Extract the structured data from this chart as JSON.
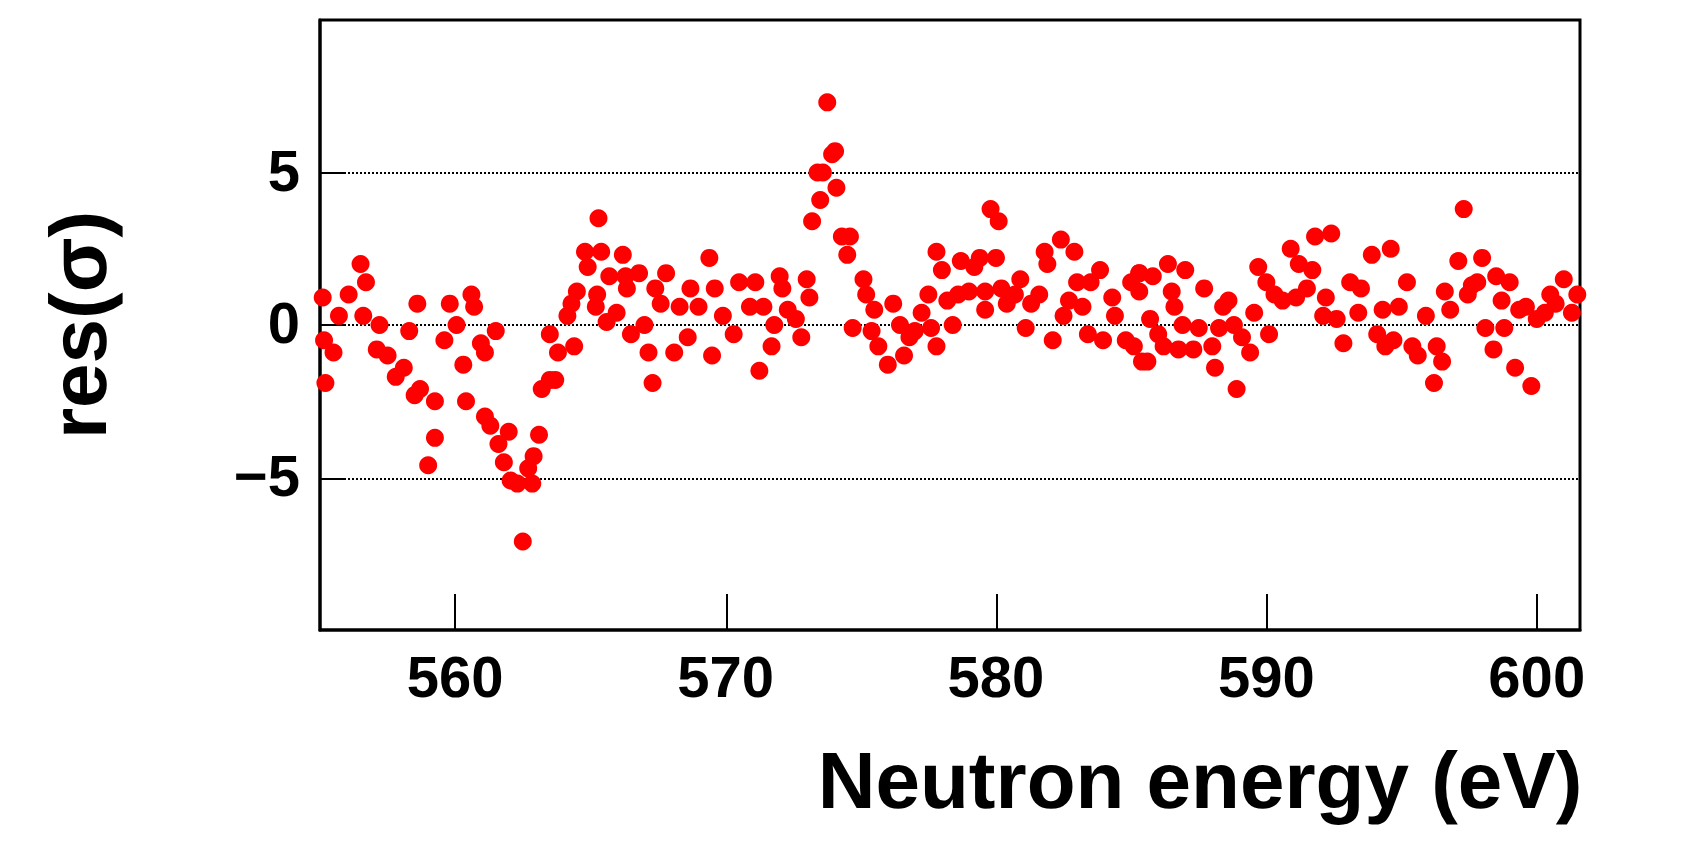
{
  "chart_data": {
    "type": "scatter",
    "xlabel": "Neutron energy (eV)",
    "ylabel": "res(σ)",
    "xlim": [
      555,
      601.6
    ],
    "xticks": [
      560,
      570,
      580,
      590,
      600
    ],
    "ylim": [
      -10,
      10
    ],
    "yticks": [
      -5,
      0,
      5
    ],
    "grid": "y",
    "marker": "circle",
    "series": [
      {
        "color": "#ff0000",
        "x": [
          555.1,
          555.15,
          555.2,
          555.5,
          555.7,
          556.06,
          556.5,
          556.7,
          556.6,
          557.2,
          557.1,
          557.5,
          557.8,
          558.1,
          558.6,
          558.3,
          558.5,
          558.7,
          559.0,
          559.25,
          559.25,
          559.6,
          559.8,
          560.05,
          560.3,
          560.4,
          560.6,
          560.7,
          560.95,
          561.1,
          561.5,
          561.1,
          561.3,
          561.6,
          561.8,
          561.98,
          562.05,
          562.3,
          562.5,
          562.7,
          562.85,
          562.9,
          563.1,
          563.2,
          563.5,
          563.7,
          563.5,
          563.8,
          564.15,
          564.4,
          564.3,
          564.5,
          564.8,
          564.9,
          565.2,
          565.25,
          565.3,
          565.4,
          565.6,
          565.7,
          565.97,
          566.2,
          566.3,
          566.35,
          566.5,
          566.8,
          567.0,
          567.15,
          567.3,
          567.4,
          567.6,
          567.8,
          568.1,
          568.3,
          568.6,
          568.7,
          569.0,
          569.4,
          569.6,
          569.5,
          569.9,
          570.3,
          570.5,
          570.9,
          571.1,
          571.25,
          571.4,
          571.7,
          571.8,
          572.0,
          572.1,
          572.3,
          572.6,
          572.8,
          573.0,
          573.1,
          573.2,
          573.4,
          573.5,
          573.6,
          573.76,
          573.94,
          574.05,
          574.1,
          574.3,
          574.5,
          574.6,
          574.7,
          575.1,
          575.2,
          575.4,
          575.5,
          575.65,
          576.0,
          576.2,
          576.45,
          576.6,
          576.8,
          577.0,
          577.25,
          577.5,
          577.6,
          577.8,
          577.8,
          578.0,
          578.2,
          578.4,
          578.6,
          578.7,
          579.0,
          579.2,
          579.4,
          579.6,
          579.6,
          579.8,
          580.0,
          580.1,
          580.2,
          580.4,
          580.7,
          580.9,
          581.1,
          581.3,
          581.6,
          581.8,
          581.9,
          582.1,
          582.4,
          582.5,
          582.7,
          582.9,
          583.0,
          583.2,
          583.4,
          583.5,
          583.85,
          583.96,
          584.3,
          584.4,
          584.8,
          585.0,
          585.3,
          585.4,
          585.1,
          585.3,
          585.3,
          585.6,
          585.7,
          585.8,
          586.0,
          586.2,
          586.36,
          586.5,
          586.6,
          586.75,
          586.9,
          587.0,
          587.3,
          587.5,
          587.7,
          588.0,
          588.1,
          588.25,
          588.4,
          588.6,
          588.8,
          588.9,
          589.1,
          589.4,
          589.55,
          589.7,
          590.0,
          590.1,
          590.3,
          590.6,
          590.9,
          591.1,
          591.2,
          591.5,
          591.7,
          591.8,
          592.1,
          592.4,
          592.2,
          592.6,
          592.85,
          593.1,
          593.5,
          593.4,
          593.9,
          594.1,
          594.3,
          594.4,
          594.6,
          594.7,
          594.9,
          595.2,
          595.4,
          595.6,
          595.9,
          596.2,
          596.3,
          596.5,
          596.6,
          596.8,
          597.1,
          597.3,
          597.45,
          597.6,
          597.8,
          597.98,
          598.1,
          598.4,
          598.5,
          598.7,
          598.8,
          599.0,
          599.2,
          599.35,
          599.6,
          599.8,
          600.0,
          600.3,
          600.5,
          600.7,
          601.0,
          601.3,
          601.5
        ],
        "values": [
          0.9,
          -0.5,
          -1.9,
          -0.9,
          0.3,
          1.0,
          2.0,
          1.4,
          0.3,
          0.0,
          -0.8,
          -1.0,
          -1.7,
          -1.4,
          0.7,
          -0.2,
          -2.3,
          -2.1,
          -4.6,
          -3.7,
          -2.5,
          -0.5,
          0.7,
          0.0,
          -1.3,
          -2.5,
          1.0,
          0.6,
          -0.6,
          -0.9,
          -0.2,
          -3.0,
          -3.3,
          -3.9,
          -4.5,
          -3.5,
          -5.1,
          -5.2,
          -7.1,
          -4.7,
          -5.2,
          -4.3,
          -3.6,
          -2.1,
          -1.8,
          -1.8,
          -0.3,
          -0.9,
          0.3,
          -0.7,
          0.7,
          1.1,
          2.4,
          1.9,
          0.6,
          1.0,
          3.5,
          2.4,
          0.1,
          1.6,
          0.4,
          2.3,
          1.6,
          1.2,
          -0.3,
          1.7,
          0.0,
          -0.9,
          -1.9,
          1.2,
          0.7,
          1.7,
          -0.9,
          0.6,
          -0.4,
          1.2,
          0.6,
          2.2,
          1.2,
          -1.0,
          0.3,
          -0.3,
          1.4,
          0.6,
          1.4,
          -1.5,
          0.6,
          -0.7,
          0.0,
          1.6,
          1.2,
          0.5,
          0.2,
          -0.4,
          1.5,
          0.9,
          3.4,
          5.0,
          4.1,
          5.0,
          7.3,
          5.6,
          5.7,
          4.5,
          2.9,
          2.3,
          2.9,
          -0.1,
          1.5,
          1.0,
          -0.2,
          0.5,
          -0.7,
          -1.3,
          0.7,
          0.0,
          -1.0,
          -0.4,
          -0.2,
          0.4,
          1.0,
          -0.1,
          2.4,
          -0.7,
          1.8,
          0.8,
          0.0,
          1.0,
          2.1,
          1.1,
          1.9,
          2.2,
          0.5,
          1.1,
          3.8,
          2.2,
          3.4,
          1.2,
          0.7,
          1.0,
          1.5,
          -0.1,
          0.7,
          1.0,
          2.4,
          2.0,
          -0.5,
          2.8,
          0.3,
          0.8,
          2.4,
          1.4,
          0.6,
          -0.3,
          1.4,
          1.8,
          -0.5,
          0.9,
          0.3,
          -0.5,
          1.4,
          1.7,
          -1.2,
          -0.7,
          1.7,
          1.1,
          -1.2,
          0.2,
          1.6,
          -0.3,
          -0.7,
          2.0,
          1.1,
          0.6,
          -0.8,
          0.0,
          1.8,
          -0.8,
          -0.1,
          1.2,
          -0.7,
          -1.4,
          -0.1,
          0.6,
          0.8,
          0.0,
          -2.1,
          -0.4,
          -0.9,
          0.4,
          1.9,
          1.4,
          -0.3,
          1.0,
          0.8,
          2.5,
          0.9,
          2.0,
          1.2,
          1.8,
          2.9,
          0.3,
          3.0,
          0.9,
          0.2,
          -0.6,
          1.4,
          1.2,
          0.4,
          2.3,
          -0.3,
          0.5,
          -0.7,
          2.5,
          -0.5,
          0.6,
          1.4,
          -0.7,
          -1.0,
          0.3,
          -1.9,
          -0.7,
          -1.2,
          1.1,
          0.5,
          2.1,
          3.8,
          1.0,
          1.3,
          1.4,
          2.2,
          -0.1,
          -0.8,
          1.6,
          0.8,
          -0.1,
          1.4,
          -1.4,
          0.5,
          0.6,
          -2.0,
          0.2,
          0.4,
          1.0,
          0.7,
          1.5,
          0.4,
          1.0
        ]
      }
    ]
  }
}
